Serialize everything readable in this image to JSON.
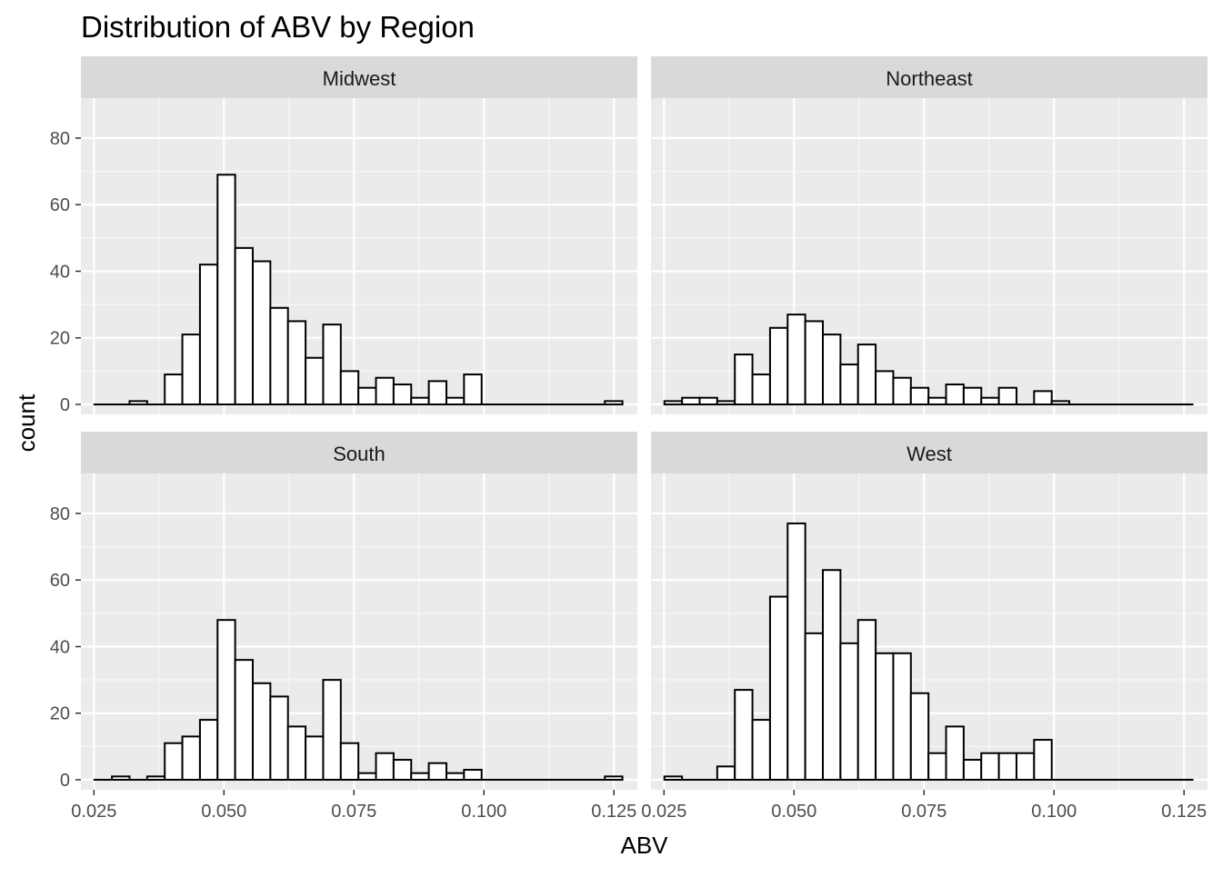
{
  "chart_data": {
    "type": "histogram",
    "title": "Distribution of ABV by Region",
    "xlabel": "ABV",
    "ylabel": "count",
    "xlim": [
      0.0225,
      0.1295
    ],
    "ylim": [
      -3,
      92
    ],
    "x_ticks": [
      0.025,
      0.05,
      0.075,
      0.1,
      0.125
    ],
    "x_tick_labels": [
      "0.025",
      "0.050",
      "0.075",
      "0.100",
      "0.125"
    ],
    "y_ticks": [
      0,
      20,
      40,
      60,
      80
    ],
    "y_tick_labels": [
      "0",
      "20",
      "40",
      "60",
      "80"
    ],
    "bins": {
      "count": 30,
      "start": 0.02508,
      "width": 0.003385
    },
    "grid": true,
    "facets": [
      {
        "name": "Midwest",
        "counts": [
          0,
          0,
          1,
          0,
          9,
          21,
          42,
          69,
          47,
          43,
          29,
          25,
          14,
          24,
          10,
          5,
          8,
          6,
          2,
          7,
          2,
          9,
          0,
          0,
          0,
          0,
          0,
          0,
          0,
          1
        ]
      },
      {
        "name": "Northeast",
        "counts": [
          1,
          2,
          2,
          1,
          15,
          9,
          23,
          27,
          25,
          21,
          12,
          18,
          10,
          8,
          5,
          2,
          6,
          5,
          2,
          5,
          0,
          4,
          1,
          0,
          0,
          0,
          0,
          0,
          0,
          0
        ]
      },
      {
        "name": "South",
        "counts": [
          0,
          1,
          0,
          1,
          11,
          13,
          18,
          48,
          36,
          29,
          25,
          16,
          13,
          30,
          11,
          2,
          8,
          6,
          2,
          5,
          2,
          3,
          0,
          0,
          0,
          0,
          0,
          0,
          0,
          1
        ]
      },
      {
        "name": "West",
        "counts": [
          1,
          0,
          0,
          4,
          27,
          18,
          55,
          77,
          44,
          63,
          41,
          48,
          38,
          38,
          26,
          8,
          16,
          6,
          8,
          8,
          8,
          12,
          0,
          0,
          0,
          0,
          0,
          0,
          0,
          0
        ]
      }
    ]
  }
}
